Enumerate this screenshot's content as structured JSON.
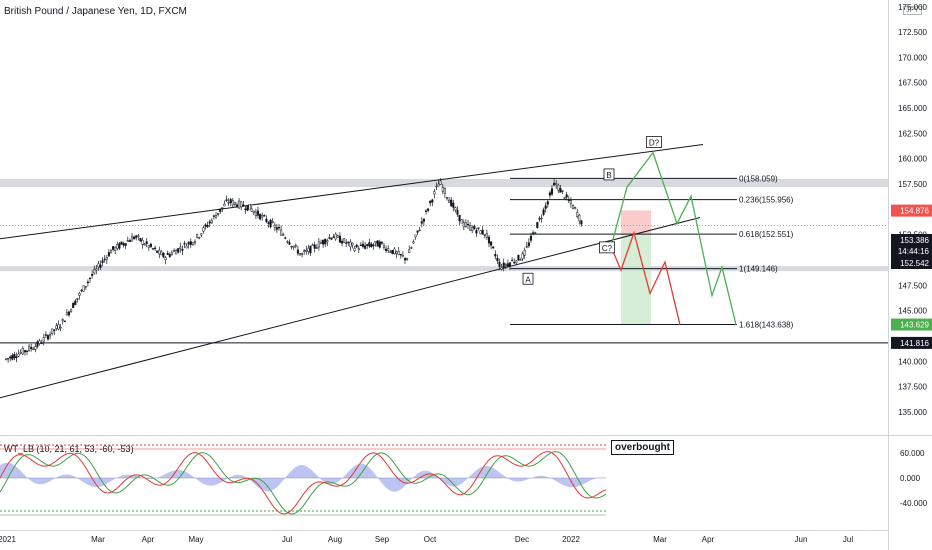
{
  "header": {
    "title": "British Pound / Japanese Yen, 1D, FXCM",
    "currency": "JPY"
  },
  "oscillator": {
    "title": "WT_LB (10, 21, 61, 53, -60, -53)",
    "overbought_label": "overbought",
    "ticks": [
      "60.000",
      "0.000",
      "-40.000"
    ],
    "colors": {
      "wt1": "#e53935",
      "wt2": "#43a047",
      "hist": "#6b7fe0"
    }
  },
  "chart_data": {
    "type": "line",
    "title": "British Pound / Japanese Yen, 1D, FXCM",
    "series": [
      {
        "name": "",
        "values": [
          {
            "x": "2021-01-04",
            "y": 140.2
          },
          {
            "x": "2021-01-25",
            "y": 141.6
          },
          {
            "x": "2021-02-10",
            "y": 143.7
          },
          {
            "x": "2021-03-01",
            "y": 148.2
          },
          {
            "x": "2021-03-15",
            "y": 150.9
          },
          {
            "x": "2021-03-31",
            "y": 152.3
          },
          {
            "x": "2021-04-20",
            "y": 150.3
          },
          {
            "x": "2021-05-10",
            "y": 152.0
          },
          {
            "x": "2021-06-01",
            "y": 155.8
          },
          {
            "x": "2021-06-15",
            "y": 155.2
          },
          {
            "x": "2021-07-05",
            "y": 153.0
          },
          {
            "x": "2021-07-20",
            "y": 150.5
          },
          {
            "x": "2021-08-10",
            "y": 152.4
          },
          {
            "x": "2021-08-25",
            "y": 151.2
          },
          {
            "x": "2021-09-10",
            "y": 151.6
          },
          {
            "x": "2021-09-28",
            "y": 150.1
          },
          {
            "x": "2021-10-20",
            "y": 157.7
          },
          {
            "x": "2021-11-05",
            "y": 153.5
          },
          {
            "x": "2021-11-20",
            "y": 152.6
          },
          {
            "x": "2021-11-30",
            "y": 149.3
          },
          {
            "x": "2021-12-15",
            "y": 150.4
          },
          {
            "x": "2021-12-31",
            "y": 155.7
          },
          {
            "x": "2022-01-05",
            "y": 157.6
          },
          {
            "x": "2022-01-18",
            "y": 155.1
          },
          {
            "x": "2022-01-24",
            "y": 153.4
          }
        ]
      }
    ],
    "price_axis": {
      "ticks": [
        "175.000",
        "172.500",
        "170.000",
        "167.500",
        "165.000",
        "162.500",
        "160.000",
        "157.500",
        "152.500",
        "150.000",
        "147.500",
        "145.000",
        "140.000",
        "137.500",
        "135.000"
      ],
      "labels": [
        {
          "text": "154.876",
          "value": 154.876,
          "bg": "#ef5350"
        },
        {
          "text": "153.386",
          "value": 153.386,
          "bg": "#131722"
        },
        {
          "text": "14:44:16",
          "value": 152.96,
          "bg": "#131722"
        },
        {
          "text": "152.542",
          "value": 152.542,
          "bg": "#131722"
        },
        {
          "text": "143.629",
          "value": 143.629,
          "bg": "#4caf50"
        },
        {
          "text": "141.816",
          "value": 141.816,
          "bg": "#131722"
        }
      ],
      "ylim": [
        133.5,
        176.8
      ]
    },
    "time_axis": [
      "2021",
      "Mar",
      "Apr",
      "May",
      "Jul",
      "Aug",
      "Sep",
      "Oct",
      "Dec",
      "2022",
      "Mar",
      "Apr",
      "Jun",
      "Jul"
    ],
    "fib_levels": [
      {
        "label": "0(158.059)",
        "value": 158.059
      },
      {
        "label": "0.236(155.956)",
        "value": 155.956
      },
      {
        "label": "0.618(152.551)",
        "value": 152.551
      },
      {
        "label": "1(149.146)",
        "value": 149.146
      },
      {
        "label": "1.618(143.638)",
        "value": 143.638
      }
    ],
    "wave_labels": [
      "A",
      "B",
      "C?",
      "D?"
    ],
    "horizontal_levels": [
      141.816
    ],
    "resistance_zone": [
      157.2,
      158.0
    ],
    "support_zone": [
      148.9,
      149.4
    ],
    "colors": {
      "up": "#131722",
      "projection_bull": "#4caf50",
      "projection_bear": "#e53935"
    }
  }
}
